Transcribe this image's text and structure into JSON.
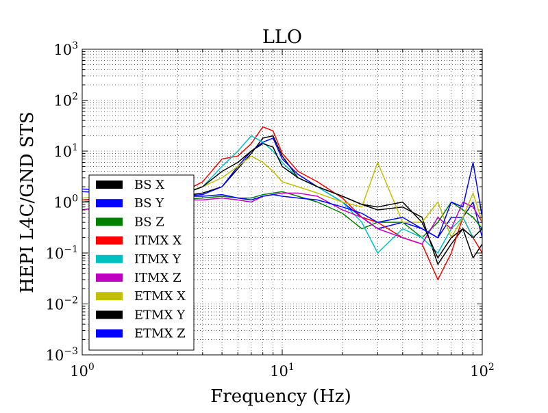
{
  "chart_data": {
    "type": "line",
    "title": "LLO",
    "xlabel": "Frequency (Hz)",
    "ylabel": "HEPI L4C/GND STS",
    "xscale": "log",
    "yscale": "log",
    "xlim": [
      1,
      100
    ],
    "ylim": [
      0.001,
      1000
    ],
    "grid": true,
    "legend_position": "lower-left",
    "x_ticks": [
      {
        "base": "10",
        "exp": "0",
        "value": 1
      },
      {
        "base": "10",
        "exp": "1",
        "value": 10
      },
      {
        "base": "10",
        "exp": "2",
        "value": 100
      }
    ],
    "y_ticks": [
      {
        "base": "10",
        "exp": "−3",
        "value": 0.001
      },
      {
        "base": "10",
        "exp": "−2",
        "value": 0.01
      },
      {
        "base": "10",
        "exp": "−1",
        "value": 0.1
      },
      {
        "base": "10",
        "exp": "0",
        "value": 1
      },
      {
        "base": "10",
        "exp": "1",
        "value": 10
      },
      {
        "base": "10",
        "exp": "2",
        "value": 100
      },
      {
        "base": "10",
        "exp": "3",
        "value": 1000
      }
    ],
    "x": [
      1.0,
      1.5,
      2.0,
      3.0,
      4.0,
      5.0,
      6.0,
      7.0,
      8.0,
      9.0,
      10.0,
      12.0,
      15.0,
      20.0,
      25.0,
      30.0,
      40.0,
      50.0,
      60.0,
      70.0,
      80.0,
      90.0,
      100.0
    ],
    "series": [
      {
        "name": "BS X",
        "color": "#000000",
        "values": [
          1.1,
          1.2,
          1.3,
          1.3,
          1.5,
          2.0,
          4.5,
          9.0,
          18.0,
          20.0,
          8.0,
          3.0,
          2.0,
          1.3,
          0.9,
          0.7,
          0.8,
          0.5,
          0.06,
          0.15,
          0.3,
          0.08,
          0.15
        ]
      },
      {
        "name": "BS Y",
        "color": "#0000ff",
        "values": [
          1.8,
          1.7,
          1.4,
          1.3,
          1.4,
          2.0,
          5.0,
          10.0,
          15.0,
          18.0,
          7.0,
          3.5,
          2.0,
          1.0,
          0.5,
          0.3,
          0.4,
          0.3,
          0.2,
          0.5,
          0.5,
          1.0,
          0.2
        ]
      },
      {
        "name": "BS Z",
        "color": "#008000",
        "values": [
          0.7,
          0.9,
          1.0,
          1.1,
          1.2,
          1.3,
          1.2,
          1.2,
          1.4,
          1.5,
          1.6,
          1.3,
          1.0,
          0.6,
          0.3,
          0.4,
          0.4,
          0.2,
          0.4,
          1.0,
          0.7,
          0.5,
          0.3
        ]
      },
      {
        "name": "ITMX X",
        "color": "#ff0000",
        "values": [
          1.1,
          1.2,
          1.3,
          1.4,
          2.5,
          7.0,
          8.0,
          14.0,
          30.0,
          25.0,
          9.0,
          4.0,
          2.5,
          1.2,
          0.5,
          0.4,
          0.2,
          0.15,
          0.03,
          0.1,
          0.5,
          0.2,
          0.1
        ]
      },
      {
        "name": "ITMX Y",
        "color": "#00c0c0",
        "values": [
          1.0,
          1.1,
          1.2,
          1.3,
          2.0,
          5.0,
          10.0,
          20.0,
          15.0,
          10.0,
          6.0,
          3.0,
          2.0,
          1.0,
          0.4,
          0.1,
          0.3,
          0.2,
          0.1,
          0.3,
          0.5,
          0.2,
          0.3
        ]
      },
      {
        "name": "ITMX Z",
        "color": "#c000c0",
        "values": [
          0.7,
          0.9,
          1.0,
          1.1,
          1.1,
          1.2,
          1.1,
          1.0,
          1.3,
          1.4,
          1.5,
          1.5,
          1.3,
          0.7,
          0.5,
          0.3,
          0.2,
          0.15,
          0.5,
          0.3,
          1.0,
          0.8,
          0.4
        ]
      },
      {
        "name": "ETMX X",
        "color": "#c0c000",
        "values": [
          1.2,
          1.3,
          1.3,
          1.4,
          2.0,
          3.0,
          5.0,
          8.0,
          6.0,
          4.0,
          2.5,
          2.0,
          1.5,
          1.0,
          0.8,
          6.0,
          0.4,
          0.4,
          1.0,
          0.2,
          0.5,
          1.5,
          0.4
        ]
      },
      {
        "name": "ETMX Y",
        "color": "#000000",
        "values": [
          1.0,
          1.1,
          1.2,
          1.3,
          2.0,
          4.0,
          6.0,
          10.0,
          14.0,
          12.0,
          5.0,
          3.0,
          2.0,
          1.3,
          0.9,
          0.8,
          1.0,
          0.4,
          0.08,
          0.2,
          0.3,
          0.2,
          0.3
        ]
      },
      {
        "name": "ETMX Z",
        "color": "#0000ff",
        "values": [
          1.6,
          1.5,
          1.4,
          1.3,
          1.3,
          1.4,
          1.2,
          1.1,
          1.3,
          1.4,
          1.3,
          1.2,
          1.1,
          0.8,
          0.6,
          0.4,
          0.5,
          0.3,
          0.2,
          1.0,
          0.8,
          6.0,
          0.5
        ]
      }
    ]
  }
}
